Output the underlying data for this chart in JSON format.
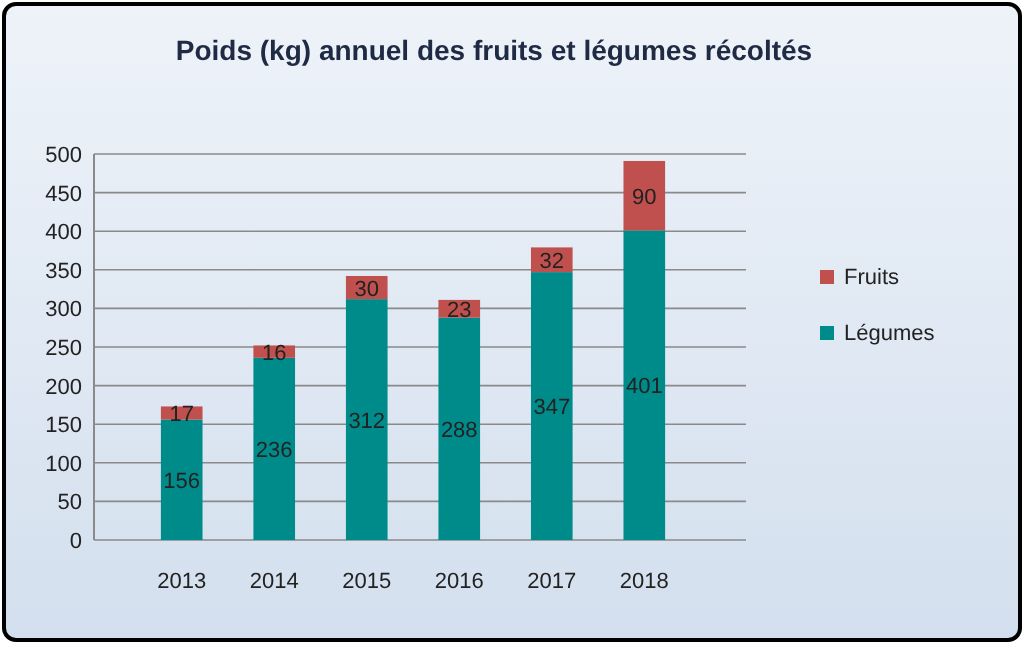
{
  "chart_data": {
    "type": "bar",
    "title": "Poids (kg) annuel des fruits et légumes récoltés",
    "categories": [
      "2013",
      "2014",
      "2015",
      "2016",
      "2017",
      "2018"
    ],
    "series": [
      {
        "name": "Légumes",
        "color": "#008b8b",
        "values": [
          156,
          236,
          312,
          288,
          347,
          401
        ]
      },
      {
        "name": "Fruits",
        "color": "#c0504d",
        "values": [
          17,
          16,
          30,
          23,
          32,
          90
        ]
      }
    ],
    "stacked": true,
    "data_labels": true,
    "ylim": [
      0,
      500
    ],
    "yticks": [
      0,
      50,
      100,
      150,
      200,
      250,
      300,
      350,
      400,
      450,
      500
    ],
    "grid": "y",
    "legend": "right"
  }
}
